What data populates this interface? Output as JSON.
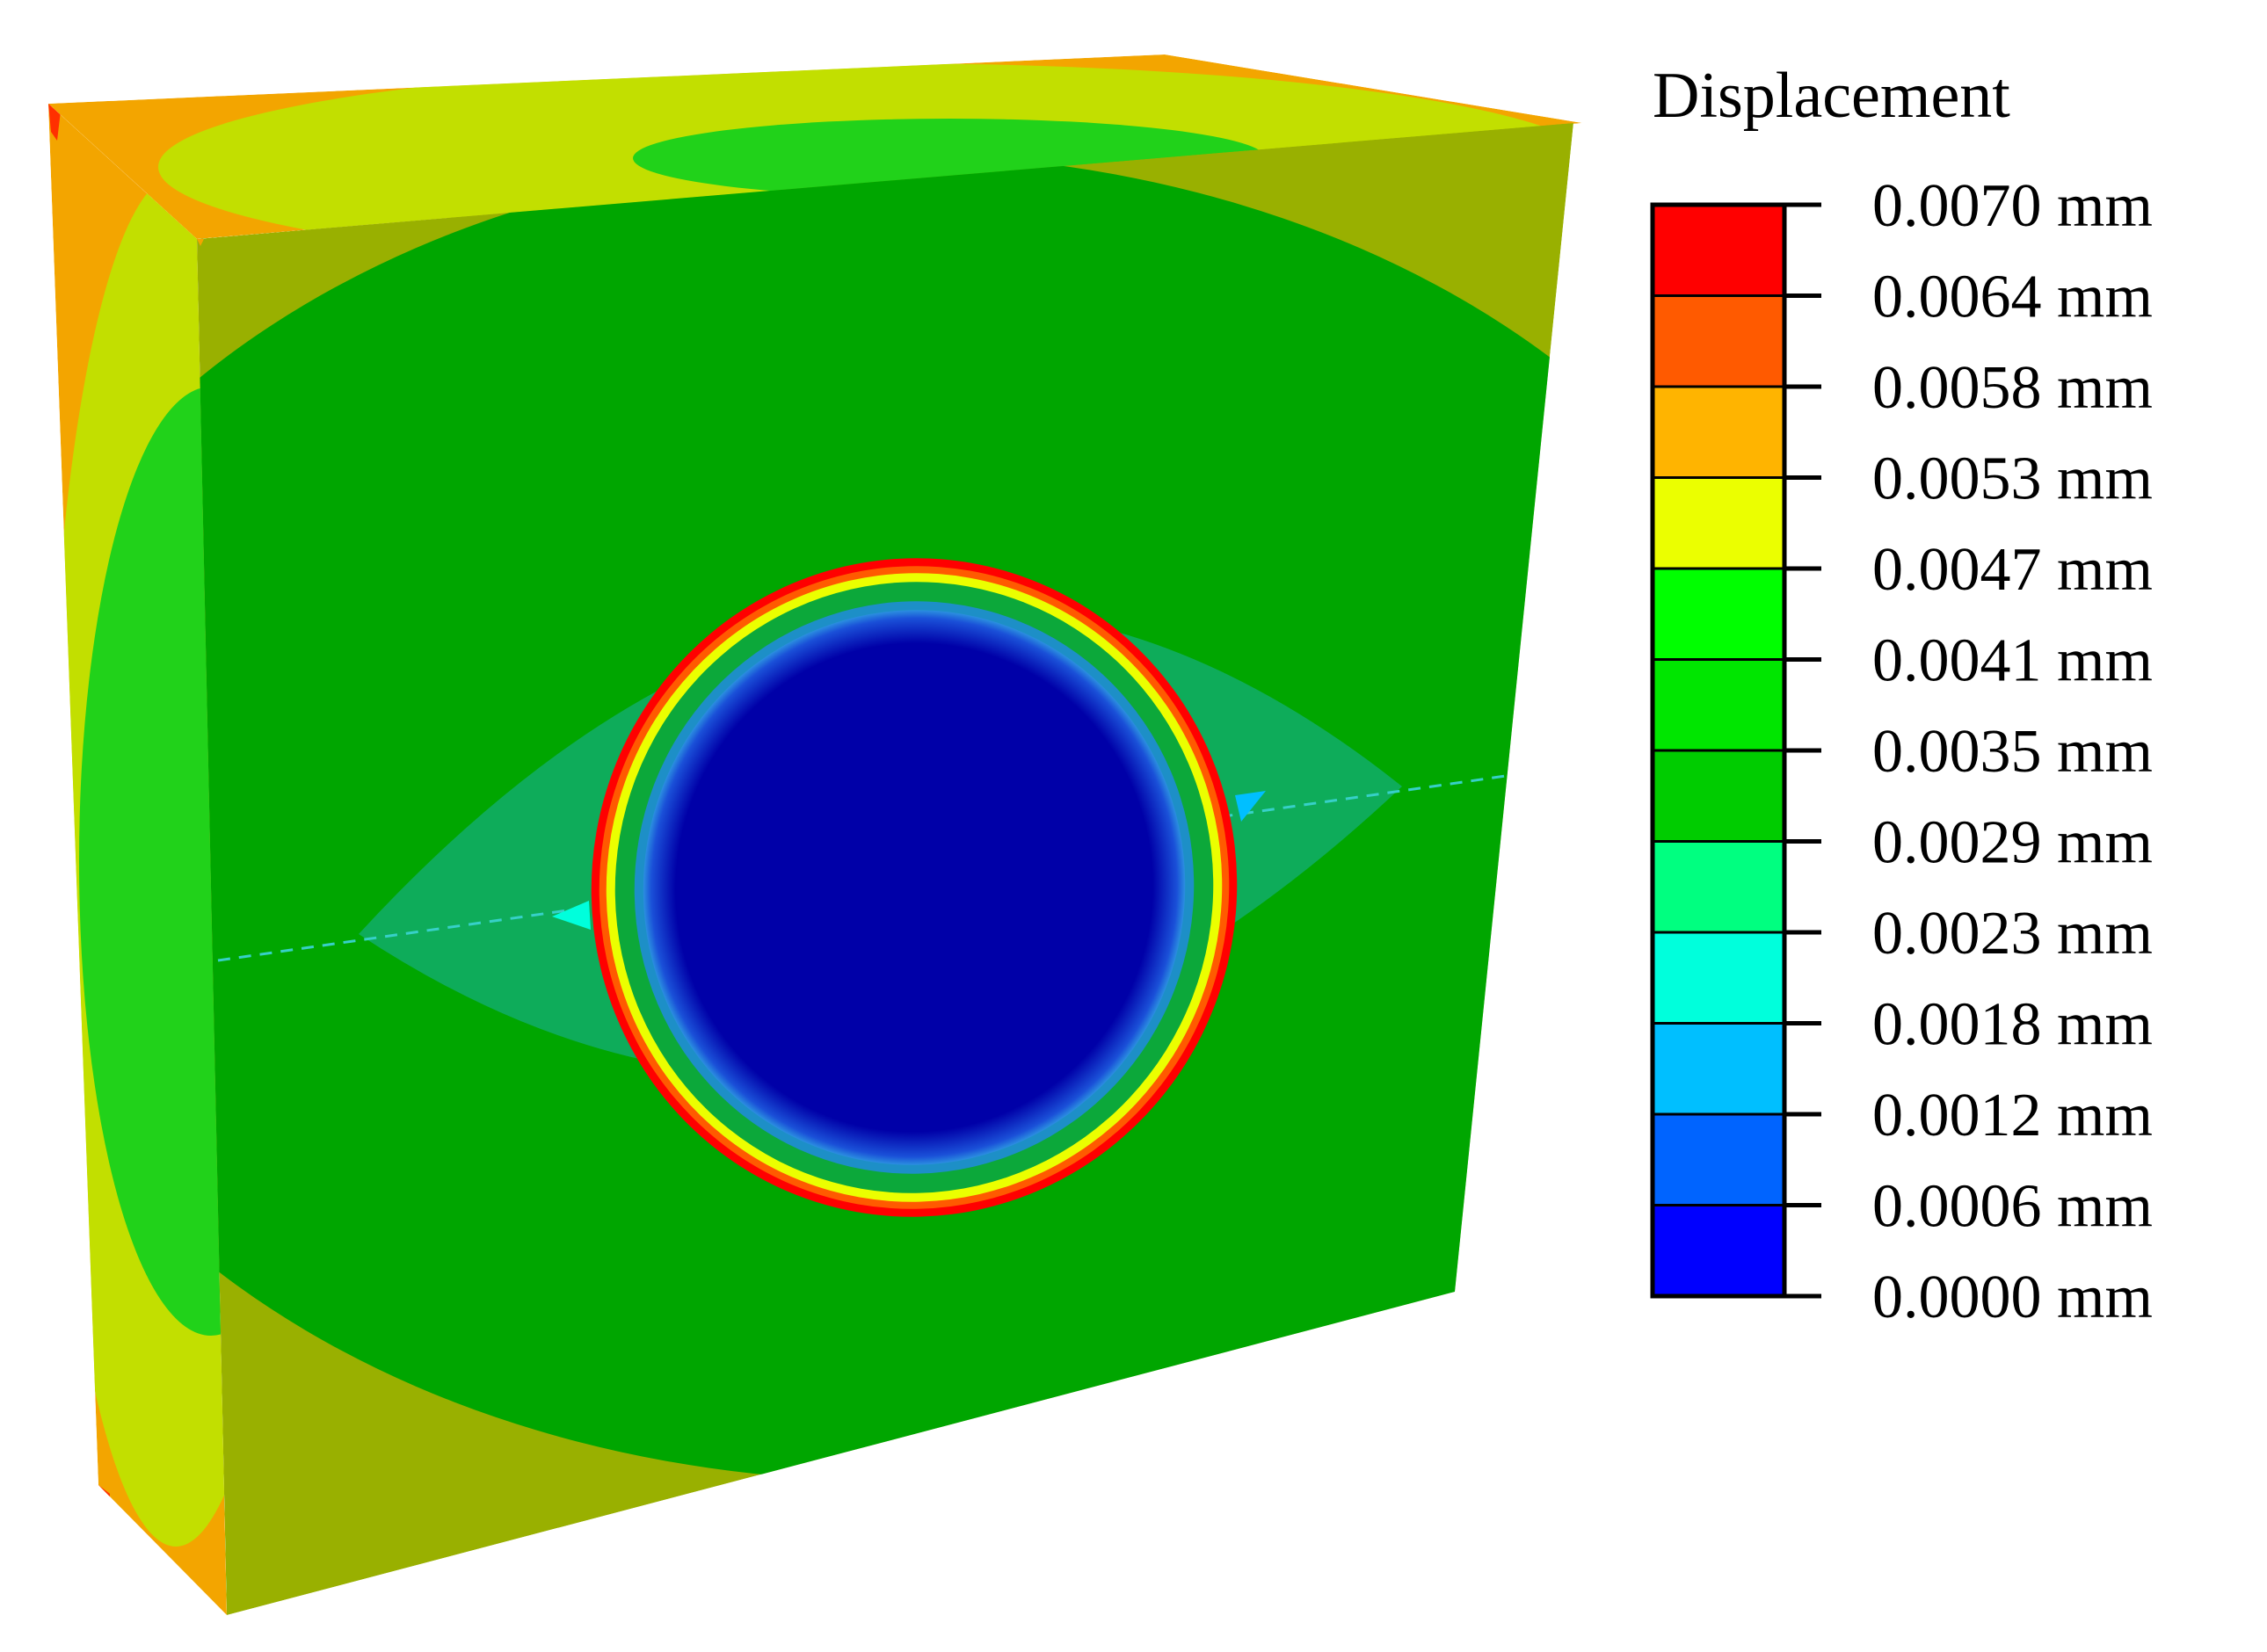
{
  "legend": {
    "title": "Displacement",
    "labels": [
      "0.0070 mm",
      "0.0064 mm",
      "0.0058 mm",
      "0.0053 mm",
      "0.0047 mm",
      "0.0041 mm",
      "0.0035 mm",
      "0.0029 mm",
      "0.0023 mm",
      "0.0018 mm",
      "0.0012 mm",
      "0.0006 mm",
      "0.0000 mm"
    ],
    "colors": [
      "#ff0000",
      "#ff5a00",
      "#ffb400",
      "#ebff00",
      "#00ff00",
      "#00e600",
      "#00cc00",
      "#00ff80",
      "#00ffdc",
      "#00bfff",
      "#0064ff",
      "#0000ff"
    ]
  },
  "field_colors": {
    "face_green": "#00a600",
    "olive": "#99b000",
    "yellow_green": "#c2df00",
    "orange": "#f3a500",
    "red": "#ff3000",
    "light_green": "#21d21a",
    "eye_teal": "#0eac5a",
    "hole_blue": "#0000a8",
    "ring_green": "#0ca83a"
  }
}
